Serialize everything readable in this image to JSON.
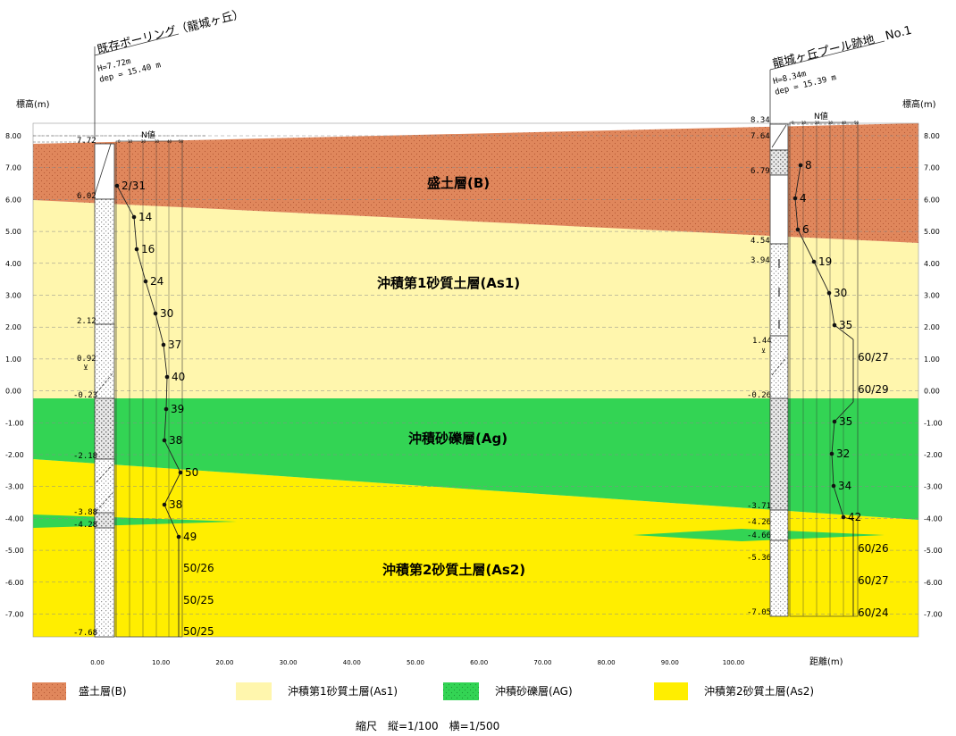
{
  "boreholes": [
    {
      "title": "既存ボーリング（龍城ヶ丘）",
      "info_h": "H=7.72m",
      "info_dep": "dep = 15.40 m",
      "top_elev": "7.72",
      "nvalue_label": "N値",
      "boundaries": [
        "6.02",
        "2.12",
        "0.92",
        "-0.23",
        "-2.18",
        "-3.88",
        "-4.28",
        "-7.68"
      ],
      "n_values": [
        "2/31",
        "14",
        "16",
        "24",
        "30",
        "37",
        "40",
        "39",
        "38",
        "50",
        "38",
        "49",
        "50/26",
        "50/25",
        "50/25"
      ]
    },
    {
      "title": "龍城ヶ丘プール跡地　No.1",
      "info_h": "H=8.34m",
      "info_dep": "dep = 15.39 m",
      "top_elev": "8.34",
      "nvalue_label": "N値",
      "boundaries": [
        "7.64",
        "6.79",
        "4.54",
        "3.94",
        "1.44",
        "-0.26",
        "-3.71",
        "-4.26",
        "-4.66",
        "-5.36",
        "-7.05"
      ],
      "n_values": [
        "8",
        "4",
        "6",
        "19",
        "30",
        "35",
        "60/27",
        "60/29",
        "35",
        "32",
        "34",
        "42",
        "60/26",
        "60/27",
        "60/24"
      ]
    }
  ],
  "axes": {
    "left_label": "標高(m)",
    "right_label": "標高(m)",
    "y_ticks": [
      "8.00",
      "7.00",
      "6.00",
      "5.00",
      "4.00",
      "3.00",
      "2.00",
      "1.00",
      "0.00",
      "-1.00",
      "-2.00",
      "-3.00",
      "-4.00",
      "-5.00",
      "-6.00",
      "-7.00"
    ],
    "x_ticks": [
      "0.00",
      "10.00",
      "20.00",
      "30.00",
      "40.00",
      "50.00",
      "60.00",
      "70.00",
      "80.00",
      "90.00",
      "100.00"
    ],
    "x_label": "距離(m)"
  },
  "layers": [
    {
      "label": "盛土層(B)",
      "color": "#e0875c"
    },
    {
      "label": "沖積第1砂質土層(As1)",
      "color": "#fff6ad"
    },
    {
      "label": "沖積砂礫層(Ag)",
      "color": "#33d454"
    },
    {
      "label": "沖積第2砂質土層(As2)",
      "color": "#ffee00"
    }
  ],
  "legend": [
    {
      "label": "盛土層(B)",
      "color": "#e0875c"
    },
    {
      "label": "沖積第1砂質土層(As1)",
      "color": "#fff6ad"
    },
    {
      "label": "沖積砂礫層(AG)",
      "color": "#33d454"
    },
    {
      "label": "沖積第2砂質土層(As2)",
      "color": "#ffee00"
    }
  ],
  "scale_note": "縮尺　縦=1/100　横=1/500"
}
